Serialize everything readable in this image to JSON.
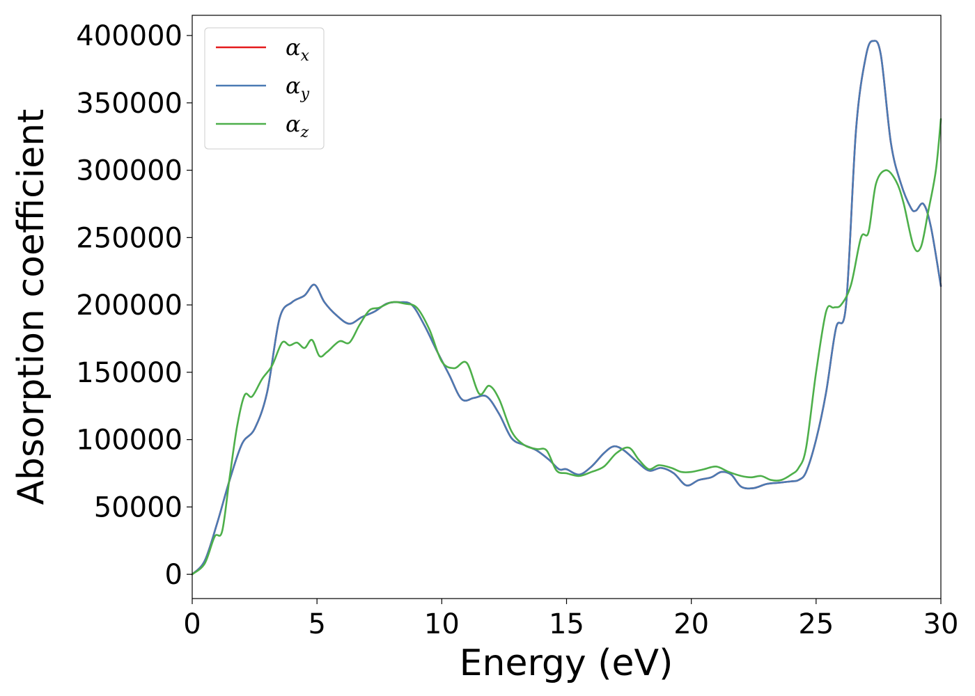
{
  "chart_data": {
    "type": "line",
    "title": "",
    "xlabel": "Energy (eV)",
    "ylabel": "Absorption coefficient",
    "xlim": [
      0,
      30
    ],
    "ylim": [
      -18000,
      415000
    ],
    "xticks": [
      0,
      5,
      10,
      15,
      20,
      25,
      30
    ],
    "xtick_labels": [
      "0",
      "5",
      "10",
      "15",
      "20",
      "25",
      "30"
    ],
    "yticks": [
      0,
      50000,
      100000,
      150000,
      200000,
      250000,
      300000,
      350000,
      400000
    ],
    "ytick_labels": [
      "0",
      "50000",
      "100000",
      "150000",
      "200000",
      "250000",
      "300000",
      "350000",
      "400000"
    ],
    "grid": false,
    "legend_position": "top-left",
    "series": [
      {
        "name": "αx",
        "symbol": "α",
        "subscript": "x",
        "color": "#e41a1c",
        "x": [
          0,
          0.5,
          1.0,
          1.5,
          2.0,
          2.5,
          3.0,
          3.5,
          4.0,
          4.5,
          4.9,
          5.3,
          5.8,
          6.3,
          6.8,
          7.3,
          7.8,
          8.3,
          8.8,
          9.3,
          9.8,
          10.3,
          10.8,
          11.3,
          11.8,
          12.3,
          12.8,
          13.3,
          13.8,
          14.3,
          14.7,
          15.0,
          15.5,
          16.0,
          16.5,
          16.9,
          17.3,
          17.8,
          18.3,
          18.8,
          19.3,
          19.8,
          20.3,
          20.8,
          21.2,
          21.6,
          22.0,
          22.5,
          23.0,
          23.5,
          24.0,
          24.3,
          24.6,
          25.0,
          25.4,
          25.8,
          26.2,
          26.6,
          27.0,
          27.3,
          27.6,
          28.0,
          28.4,
          28.8,
          29.0,
          29.3,
          29.6,
          30.0
        ],
        "values": [
          0,
          10000,
          38000,
          70000,
          97000,
          108000,
          135000,
          190000,
          202000,
          207000,
          215000,
          202000,
          192000,
          186000,
          191000,
          195000,
          201000,
          202000,
          200000,
          185000,
          166000,
          148000,
          130000,
          131000,
          132000,
          119000,
          101000,
          96000,
          92000,
          85000,
          78000,
          78000,
          74000,
          80000,
          90000,
          95000,
          92000,
          84000,
          77000,
          79000,
          75000,
          66000,
          70000,
          72000,
          76000,
          74000,
          65000,
          64000,
          67000,
          68000,
          69000,
          70000,
          76000,
          100000,
          135000,
          183000,
          200000,
          330000,
          385000,
          396000,
          385000,
          320000,
          290000,
          272000,
          270000,
          275000,
          258000,
          214000
        ]
      },
      {
        "name": "αy",
        "symbol": "α",
        "subscript": "y",
        "color": "#4a7ab3",
        "x": [
          0,
          0.5,
          1.0,
          1.5,
          2.0,
          2.5,
          3.0,
          3.5,
          4.0,
          4.5,
          4.9,
          5.3,
          5.8,
          6.3,
          6.8,
          7.3,
          7.8,
          8.3,
          8.8,
          9.3,
          9.8,
          10.3,
          10.8,
          11.3,
          11.8,
          12.3,
          12.8,
          13.3,
          13.8,
          14.3,
          14.7,
          15.0,
          15.5,
          16.0,
          16.5,
          16.9,
          17.3,
          17.8,
          18.3,
          18.8,
          19.3,
          19.8,
          20.3,
          20.8,
          21.2,
          21.6,
          22.0,
          22.5,
          23.0,
          23.5,
          24.0,
          24.3,
          24.6,
          25.0,
          25.4,
          25.8,
          26.2,
          26.6,
          27.0,
          27.3,
          27.6,
          28.0,
          28.4,
          28.8,
          29.0,
          29.3,
          29.6,
          30.0
        ],
        "values": [
          0,
          10000,
          38000,
          70000,
          97000,
          108000,
          135000,
          190000,
          202000,
          207000,
          215000,
          202000,
          192000,
          186000,
          191000,
          195000,
          201000,
          202000,
          200000,
          185000,
          166000,
          148000,
          130000,
          131000,
          132000,
          119000,
          101000,
          96000,
          92000,
          85000,
          78000,
          78000,
          74000,
          80000,
          90000,
          95000,
          92000,
          84000,
          77000,
          79000,
          75000,
          66000,
          70000,
          72000,
          76000,
          74000,
          65000,
          64000,
          67000,
          68000,
          69000,
          70000,
          76000,
          100000,
          135000,
          183000,
          200000,
          330000,
          385000,
          396000,
          385000,
          320000,
          290000,
          272000,
          270000,
          275000,
          258000,
          214000
        ]
      },
      {
        "name": "αz",
        "symbol": "α",
        "subscript": "z",
        "color": "#4daf4a",
        "x": [
          0,
          0.5,
          0.9,
          1.2,
          1.5,
          1.8,
          2.1,
          2.4,
          2.8,
          3.2,
          3.6,
          3.9,
          4.2,
          4.5,
          4.8,
          5.1,
          5.4,
          5.9,
          6.3,
          6.7,
          7.1,
          7.5,
          8.0,
          8.5,
          9.0,
          9.5,
          10.0,
          10.5,
          11.0,
          11.5,
          11.9,
          12.3,
          12.8,
          13.3,
          13.8,
          14.2,
          14.6,
          15.0,
          15.5,
          16.0,
          16.5,
          17.0,
          17.5,
          17.9,
          18.3,
          18.7,
          19.2,
          19.6,
          20.0,
          20.5,
          21.0,
          21.5,
          22.0,
          22.4,
          22.8,
          23.2,
          23.6,
          24.0,
          24.3,
          24.6,
          25.0,
          25.4,
          25.7,
          26.0,
          26.4,
          26.8,
          27.1,
          27.4,
          27.8,
          28.2,
          28.5,
          28.9,
          29.2,
          29.5,
          29.8,
          30.0
        ],
        "values": [
          0,
          8000,
          28000,
          32000,
          72000,
          110000,
          133000,
          132000,
          145000,
          155000,
          172000,
          170000,
          172000,
          168000,
          174000,
          162000,
          165000,
          173000,
          172000,
          185000,
          196000,
          198000,
          202000,
          201000,
          198000,
          182000,
          158000,
          153000,
          157000,
          134000,
          140000,
          130000,
          106000,
          96000,
          93000,
          92000,
          77000,
          75000,
          73000,
          76000,
          80000,
          90000,
          94000,
          85000,
          78000,
          81000,
          79000,
          76000,
          76000,
          78000,
          80000,
          76000,
          73000,
          72000,
          73000,
          70000,
          70000,
          74000,
          79000,
          94000,
          150000,
          195000,
          198000,
          200000,
          215000,
          250000,
          254000,
          290000,
          300000,
          292000,
          276000,
          244000,
          243000,
          270000,
          300000,
          338000
        ]
      }
    ]
  }
}
